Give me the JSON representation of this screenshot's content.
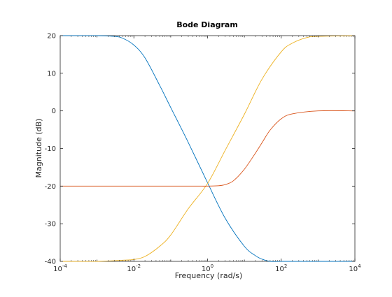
{
  "chart_data": {
    "type": "line",
    "title": "Bode Diagram",
    "xlabel": "Frequency  (rad/s)",
    "ylabel": "Magnitude (dB)",
    "x_scale": "log",
    "xlim": [
      0.0001,
      10000
    ],
    "ylim": [
      -40,
      20
    ],
    "grid": false,
    "legend": "none",
    "x_ticks": [
      {
        "base": "10",
        "exp": "-4",
        "value": 0.0001
      },
      {
        "base": "10",
        "exp": "-2",
        "value": 0.01
      },
      {
        "base": "10",
        "exp": "0",
        "value": 1
      },
      {
        "base": "10",
        "exp": "2",
        "value": 100
      },
      {
        "base": "10",
        "exp": "4",
        "value": 10000
      }
    ],
    "y_ticks": [
      {
        "label": "20",
        "value": 20
      },
      {
        "label": "10",
        "value": 10
      },
      {
        "label": "0",
        "value": 0
      },
      {
        "label": "-10",
        "value": -10
      },
      {
        "label": "-20",
        "value": -20
      },
      {
        "label": "-30",
        "value": -30
      },
      {
        "label": "-40",
        "value": -40
      }
    ],
    "series": [
      {
        "color": "#0072bd",
        "x": [
          0.0001,
          0.001,
          0.003,
          0.005,
          0.01,
          0.02,
          0.05,
          0.1,
          0.3,
          1,
          3,
          10,
          20,
          30,
          50,
          100,
          1000,
          10000
        ],
        "y": [
          20,
          20,
          19.8,
          19.3,
          17.5,
          14.1,
          6.8,
          0.9,
          -8.4,
          -19.1,
          -28.5,
          -36.0,
          -38.5,
          -39.4,
          -40,
          -40,
          -40,
          -40
        ]
      },
      {
        "color": "#edb120",
        "x": [
          0.0001,
          0.001,
          0.005,
          0.01,
          0.02,
          0.05,
          0.1,
          0.3,
          1,
          3,
          10,
          30,
          100,
          200,
          500,
          1000,
          10000
        ],
        "y": [
          -40,
          -40,
          -39.7,
          -39.5,
          -38.7,
          -36.0,
          -33.0,
          -26.0,
          -19.3,
          -10.5,
          -0.9,
          8.4,
          15.7,
          18.0,
          19.5,
          19.8,
          20
        ]
      },
      {
        "color": "#d95319",
        "x": [
          0.0001,
          0.01,
          0.1,
          0.5,
          1,
          2,
          3,
          5,
          10,
          20,
          30,
          50,
          100,
          200,
          1000,
          10000
        ],
        "y": [
          -20,
          -20,
          -20,
          -20,
          -20,
          -19.9,
          -19.6,
          -18.6,
          -15.5,
          -11.2,
          -8.5,
          -5.1,
          -2.1,
          -0.8,
          0,
          0
        ]
      }
    ]
  }
}
